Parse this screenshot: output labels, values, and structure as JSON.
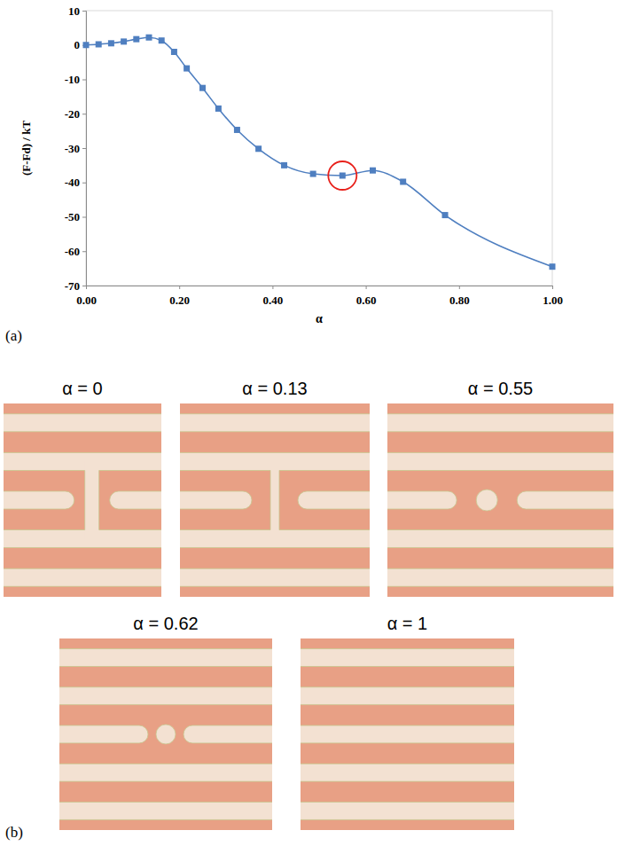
{
  "chart_data": {
    "type": "line",
    "x": [
      0,
      0.027,
      0.054,
      0.081,
      0.108,
      0.135,
      0.162,
      0.189,
      0.216,
      0.25,
      0.284,
      0.324,
      0.37,
      0.425,
      0.487,
      0.55,
      0.615,
      0.68,
      0.77,
      1.0
    ],
    "values": [
      0,
      0.2,
      0.5,
      1.0,
      1.7,
      2.2,
      1.3,
      -2,
      -6.8,
      -12.5,
      -18.5,
      -24.7,
      -30.2,
      -35,
      -37.5,
      -38,
      -36.5,
      -39.8,
      -49.5,
      -64.5
    ],
    "x_label": "α",
    "y_label": "(F-Fd) / kT",
    "xlim": [
      0,
      1
    ],
    "ylim": [
      -70,
      10
    ],
    "xticks": [
      {
        "value": 0,
        "label": "0.00"
      },
      {
        "value": 0.2,
        "label": "0.20"
      },
      {
        "value": 0.4,
        "label": "0.40"
      },
      {
        "value": 0.6,
        "label": "0.60"
      },
      {
        "value": 0.8,
        "label": "0.80"
      },
      {
        "value": 1,
        "label": "1.00"
      }
    ],
    "yticks": [
      -70,
      -60,
      -50,
      -40,
      -30,
      -20,
      -10,
      0,
      10
    ],
    "color": "#4f7fc0",
    "marker": "square",
    "grid": false
  },
  "panels": [
    "(a)",
    "(b)"
  ],
  "snapshots": {
    "labels": [
      "α = 0",
      "α = 0.13",
      "α = 0.55",
      "α = 0.62",
      "α = 1"
    ]
  }
}
